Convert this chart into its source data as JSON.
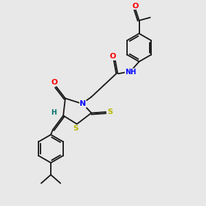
{
  "bg_color": "#e8e8e8",
  "atom_colors": {
    "O": "#ff0000",
    "N": "#0000ff",
    "S": "#b8b800",
    "H": "#007070",
    "C": "#000000"
  },
  "bond_color": "#1a1a1a",
  "bond_width": 1.4,
  "figsize": [
    3.0,
    3.0
  ],
  "dpi": 100
}
